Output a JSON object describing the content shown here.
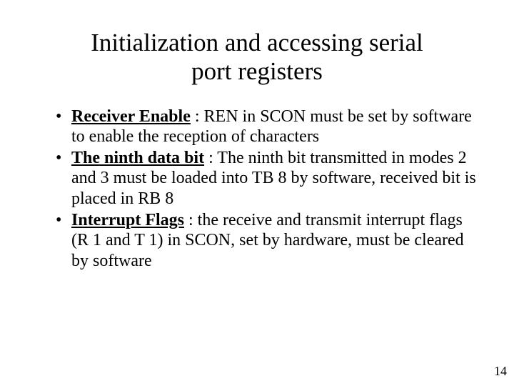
{
  "title_line1": "Initialization and accessing serial",
  "title_line2": "port registers",
  "bullets": [
    {
      "term": "Receiver Enable",
      "rest": " : REN in SCON must be set by software to enable the reception of characters"
    },
    {
      "term": "The ninth data bit",
      "rest": " : The ninth bit transmitted in modes 2 and 3 must be loaded into TB 8 by software, received bit is placed in RB 8"
    },
    {
      "term": "Interrupt Flags",
      "rest": " : the receive and transmit interrupt flags (R 1 and T 1) in SCON, set by hardware, must be cleared by software"
    }
  ],
  "page_number": "14",
  "colors": {
    "background": "#ffffff",
    "text": "#000000"
  },
  "typography": {
    "title_fontsize": 35,
    "body_fontsize": 24,
    "pagenum_fontsize": 18,
    "font_family": "Times New Roman"
  }
}
